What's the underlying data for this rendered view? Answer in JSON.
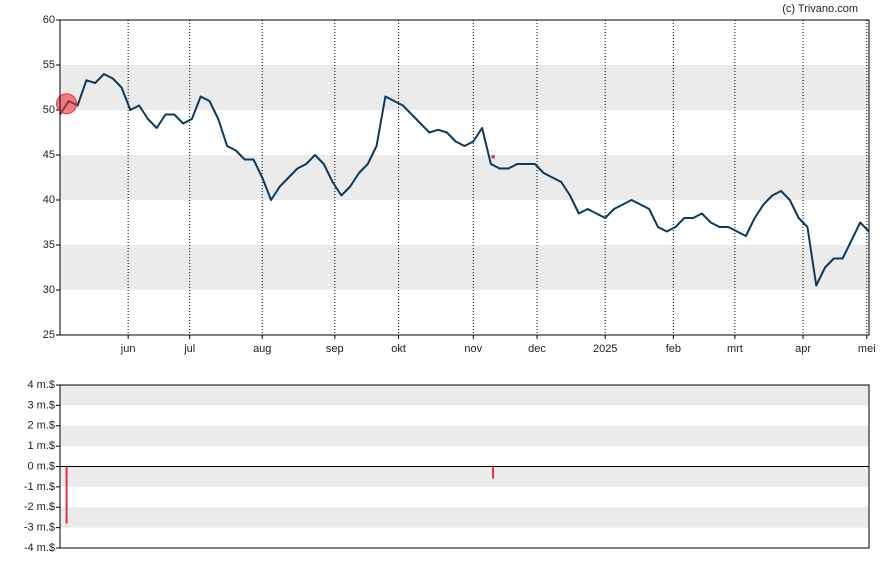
{
  "chart_data": [
    {
      "type": "line",
      "annotation": "(c) Trivano.com",
      "x": [
        0,
        4,
        8,
        12,
        16,
        20,
        24,
        28,
        32,
        36,
        40,
        44,
        48,
        52,
        56,
        60,
        64,
        68,
        72,
        76,
        80,
        84,
        88,
        92,
        96,
        100,
        104,
        108,
        112,
        116,
        120,
        124,
        128,
        132,
        136,
        140,
        144,
        148,
        152,
        156,
        160,
        164,
        168,
        172,
        176,
        180,
        184,
        188,
        192,
        196,
        200,
        204,
        208,
        212,
        216,
        220,
        224,
        228,
        232,
        236,
        240,
        244,
        248,
        252,
        256,
        260,
        264,
        268,
        272,
        276,
        280,
        284,
        288,
        292,
        296,
        300,
        304,
        308,
        312,
        316,
        320,
        324,
        328,
        332,
        336,
        340,
        344,
        348,
        352,
        356,
        360,
        364,
        368
      ],
      "values": [
        49.5,
        51,
        50.5,
        53.3,
        53,
        54,
        53.5,
        52.5,
        50,
        50.5,
        49,
        48,
        49.5,
        49.5,
        48.5,
        49,
        51.5,
        51,
        49,
        46,
        45.5,
        44.5,
        44.5,
        42.5,
        40,
        41.5,
        42.5,
        43.5,
        44,
        45,
        44,
        42,
        40.5,
        41.5,
        43,
        44,
        46,
        51.5,
        51,
        50.5,
        49.5,
        48.5,
        47.5,
        47.8,
        47.5,
        46.5,
        46,
        46.5,
        48,
        44,
        43.5,
        43.5,
        44,
        44,
        44,
        43,
        42.5,
        42,
        40.5,
        38.5,
        39,
        38.5,
        38,
        39,
        39.5,
        40,
        39.5,
        39,
        37,
        36.5,
        37,
        38,
        38,
        38.5,
        37.5,
        37,
        37,
        36.5,
        36,
        38,
        39.5,
        40.5,
        41,
        40,
        38,
        37,
        30.5,
        32.5,
        33.5,
        33.5,
        35.5,
        37.5,
        36.5
      ],
      "color": "#0d3a5c",
      "markers": {
        "x": [
          3,
          197
        ],
        "values": [
          50.7,
          44.8
        ],
        "color": "#e8303a"
      },
      "xlim": [
        0,
        368
      ],
      "ylim": [
        25,
        60
      ],
      "yticks": [
        25,
        30,
        35,
        40,
        45,
        50,
        55,
        60
      ],
      "xticks": [
        {
          "value": 31,
          "label": "jun"
        },
        {
          "value": 59,
          "label": "jul"
        },
        {
          "value": 92,
          "label": "aug"
        },
        {
          "value": 125,
          "label": "sep"
        },
        {
          "value": 154,
          "label": "okt"
        },
        {
          "value": 188,
          "label": "nov"
        },
        {
          "value": 217,
          "label": "dec"
        },
        {
          "value": 248,
          "label": "2025"
        },
        {
          "value": 279,
          "label": "feb"
        },
        {
          "value": 307,
          "label": "mrt"
        },
        {
          "value": 338,
          "label": "apr"
        },
        {
          "value": 367,
          "label": "mei"
        }
      ],
      "stripes": "odd"
    },
    {
      "type": "bar",
      "x": [
        3,
        197
      ],
      "values": [
        -2.8,
        -0.6
      ],
      "color": "#e8303a",
      "xlim": [
        0,
        368
      ],
      "ylim": [
        -4,
        4
      ],
      "yticks": [
        {
          "value": -4,
          "label": "-4 m.$"
        },
        {
          "value": -3,
          "label": "-3 m.$"
        },
        {
          "value": -2,
          "label": "-2 m.$"
        },
        {
          "value": -1,
          "label": "-1 m.$"
        },
        {
          "value": 0,
          "label": "0 m.$"
        },
        {
          "value": 1,
          "label": "1 m.$"
        },
        {
          "value": 2,
          "label": "2 m.$"
        },
        {
          "value": 3,
          "label": "3 m.$"
        },
        {
          "value": 4,
          "label": "4 m.$"
        }
      ],
      "stripes": "even"
    }
  ]
}
